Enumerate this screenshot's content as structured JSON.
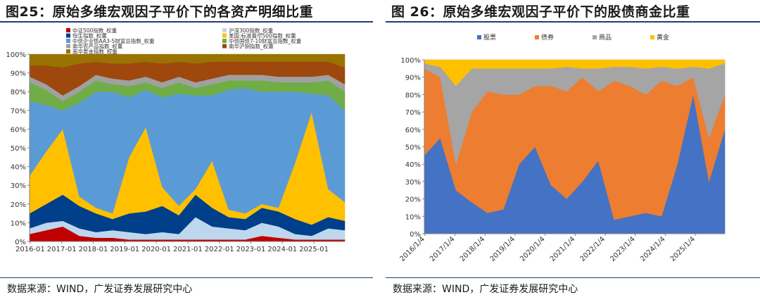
{
  "left": {
    "title": "图25：原始多维宏观因子平价下的各资产明细比重",
    "source": "数据来源：WIND，广发证券发展研究中心",
    "chart_data": {
      "type": "area",
      "stacked": true,
      "ylim": [
        0,
        100
      ],
      "yticks": [
        "0%",
        "10%",
        "20%",
        "30%",
        "40%",
        "50%",
        "60%",
        "70%",
        "80%",
        "90%",
        "100%"
      ],
      "xticks": [
        "2016-01",
        "2017-01",
        "2018-01",
        "2019-01",
        "2020-01",
        "2021-01",
        "2022-01",
        "2023-01",
        "2024-01",
        "2025-01"
      ],
      "x": [
        "2016-01",
        "2016-07",
        "2017-01",
        "2017-07",
        "2018-01",
        "2018-07",
        "2019-01",
        "2019-07",
        "2020-01",
        "2020-07",
        "2021-01",
        "2021-07",
        "2022-01",
        "2022-07",
        "2023-01",
        "2023-07",
        "2024-01",
        "2024-07",
        "2025-01",
        "2025-07"
      ],
      "legend": [
        {
          "name": "中证500指数_权重",
          "color": "#c00000"
        },
        {
          "name": "沪深300指数_权重",
          "color": "#bdd7ee"
        },
        {
          "name": "恒生指数_权重",
          "color": "#003f8a"
        },
        {
          "name": "美国:标准普尔500指数_权重",
          "color": "#ffc000"
        },
        {
          "name": "中债企业债AA3-5财富总指数_权重",
          "color": "#5b9bd5"
        },
        {
          "name": "中债国债7-10财富总指数_权重",
          "color": "#70ad47"
        },
        {
          "name": "南华农产品指数_权重",
          "color": "#a0a0a0"
        },
        {
          "name": "南华沪铜指数_权重",
          "color": "#9e480e"
        },
        {
          "name": "南华黄金指数_权重",
          "color": "#997300"
        }
      ],
      "series": [
        {
          "name": "中证500指数_权重",
          "values": [
            4,
            6,
            8,
            3,
            2,
            2,
            1,
            1,
            1,
            1,
            1,
            1,
            1,
            1,
            3,
            2,
            1,
            1,
            1,
            1
          ]
        },
        {
          "name": "沪深300指数_权重",
          "values": [
            3,
            4,
            3,
            4,
            3,
            4,
            4,
            3,
            4,
            3,
            12,
            7,
            6,
            5,
            7,
            6,
            3,
            2,
            6,
            5
          ]
        },
        {
          "name": "恒生指数_权重",
          "values": [
            8,
            10,
            14,
            12,
            10,
            6,
            10,
            12,
            14,
            10,
            12,
            10,
            6,
            6,
            8,
            8,
            8,
            6,
            6,
            5
          ]
        },
        {
          "name": "美国:标准普尔500指数_权重",
          "values": [
            20,
            28,
            35,
            5,
            3,
            3,
            30,
            45,
            10,
            5,
            3,
            25,
            4,
            3,
            2,
            2,
            30,
            60,
            15,
            10
          ]
        },
        {
          "name": "中债企业债AA3-5财富总指数_权重",
          "values": [
            40,
            25,
            10,
            50,
            62,
            65,
            32,
            20,
            48,
            60,
            50,
            35,
            64,
            67,
            60,
            62,
            38,
            10,
            50,
            49
          ]
        },
        {
          "name": "中债国债7-10财富总指数_权重",
          "values": [
            10,
            8,
            5,
            6,
            6,
            4,
            6,
            4,
            5,
            6,
            4,
            6,
            5,
            4,
            6,
            5,
            5,
            6,
            8,
            10
          ]
        },
        {
          "name": "南华农产品指数_权重",
          "values": [
            3,
            3,
            3,
            3,
            3,
            3,
            3,
            3,
            3,
            3,
            3,
            3,
            3,
            3,
            3,
            3,
            3,
            3,
            3,
            4
          ]
        },
        {
          "name": "南华沪铜指数_权重",
          "values": [
            6,
            10,
            15,
            12,
            7,
            8,
            9,
            8,
            10,
            8,
            10,
            9,
            7,
            7,
            7,
            8,
            8,
            8,
            7,
            9
          ]
        },
        {
          "name": "南华黄金指数_权重",
          "values": [
            6,
            6,
            7,
            5,
            4,
            5,
            5,
            4,
            5,
            4,
            5,
            4,
            4,
            4,
            4,
            4,
            4,
            4,
            4,
            7
          ]
        }
      ]
    }
  },
  "right": {
    "title": "图 26：原始多维宏观因子平价下的股债商金比重",
    "source": "数据来源：WIND，广发证券发展研究中心",
    "chart_data": {
      "type": "area",
      "stacked": true,
      "ylim": [
        0,
        100
      ],
      "yticks": [
        "0%",
        "10%",
        "20%",
        "30%",
        "40%",
        "50%",
        "60%",
        "70%",
        "80%",
        "90%",
        "100%"
      ],
      "xticks": [
        "2016/1/4",
        "2017/1/4",
        "2018/1/4",
        "2019/1/4",
        "2020/1/4",
        "2021/1/4",
        "2022/1/4",
        "2023/1/4",
        "2024/1/4",
        "2025/1/4"
      ],
      "x": [
        "2016-01",
        "2016-07",
        "2017-01",
        "2017-07",
        "2018-01",
        "2018-07",
        "2019-01",
        "2019-07",
        "2020-01",
        "2020-07",
        "2021-01",
        "2021-07",
        "2022-01",
        "2022-07",
        "2023-01",
        "2023-07",
        "2024-01",
        "2024-07",
        "2025-01",
        "2025-07"
      ],
      "legend": [
        {
          "name": "股票",
          "color": "#4472c4"
        },
        {
          "name": "债券",
          "color": "#ed7d31"
        },
        {
          "name": "商品",
          "color": "#a5a5a5"
        },
        {
          "name": "黄金",
          "color": "#ffc000"
        }
      ],
      "series": [
        {
          "name": "股票",
          "values": [
            45,
            55,
            25,
            18,
            12,
            14,
            40,
            50,
            28,
            20,
            30,
            42,
            8,
            10,
            12,
            10,
            40,
            80,
            30,
            60
          ]
        },
        {
          "name": "债券",
          "values": [
            50,
            35,
            15,
            52,
            70,
            66,
            40,
            35,
            57,
            62,
            60,
            40,
            80,
            75,
            68,
            78,
            45,
            10,
            25,
            20
          ]
        },
        {
          "name": "商品",
          "values": [
            3,
            6,
            45,
            25,
            13,
            15,
            15,
            10,
            10,
            14,
            5,
            13,
            8,
            11,
            15,
            8,
            10,
            6,
            40,
            18
          ]
        },
        {
          "name": "黄金",
          "values": [
            2,
            4,
            15,
            5,
            5,
            5,
            5,
            5,
            5,
            4,
            5,
            5,
            4,
            4,
            5,
            4,
            5,
            4,
            5,
            2
          ]
        }
      ]
    }
  }
}
